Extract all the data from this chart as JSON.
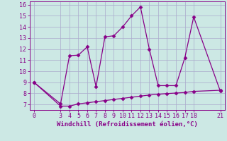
{
  "xlabel": "Windchill (Refroidissement éolien,°C)",
  "line1_x": [
    0,
    3,
    4,
    5,
    6,
    7,
    8,
    9,
    10,
    11,
    12,
    13,
    14,
    15,
    16,
    17,
    18,
    21
  ],
  "line1_y": [
    9.0,
    6.85,
    6.85,
    7.05,
    7.15,
    7.25,
    7.35,
    7.45,
    7.55,
    7.65,
    7.75,
    7.85,
    7.92,
    7.98,
    8.03,
    8.08,
    8.18,
    8.28
  ],
  "line2_x": [
    0,
    3,
    4,
    5,
    6,
    7,
    8,
    9,
    10,
    11,
    12,
    13,
    14,
    15,
    16,
    17,
    18,
    21
  ],
  "line2_y": [
    9.0,
    7.05,
    11.4,
    11.45,
    12.2,
    8.6,
    13.1,
    13.2,
    14.0,
    15.0,
    15.8,
    12.0,
    8.7,
    8.7,
    8.7,
    11.2,
    14.9,
    8.2
  ],
  "line_color": "#880088",
  "marker": "D",
  "markersize": 2.5,
  "xlim": [
    -0.5,
    21.5
  ],
  "ylim": [
    6.5,
    16.3
  ],
  "xticks": [
    0,
    3,
    4,
    5,
    6,
    7,
    8,
    9,
    10,
    11,
    12,
    13,
    14,
    15,
    16,
    17,
    18,
    21
  ],
  "yticks": [
    7,
    8,
    9,
    10,
    11,
    12,
    13,
    14,
    15,
    16
  ],
  "bg_color": "#cce8e4",
  "grid_color": "#aaaacc",
  "text_color": "#880088",
  "linewidth": 0.9,
  "tick_fontsize": 6.0,
  "xlabel_fontsize": 6.5
}
